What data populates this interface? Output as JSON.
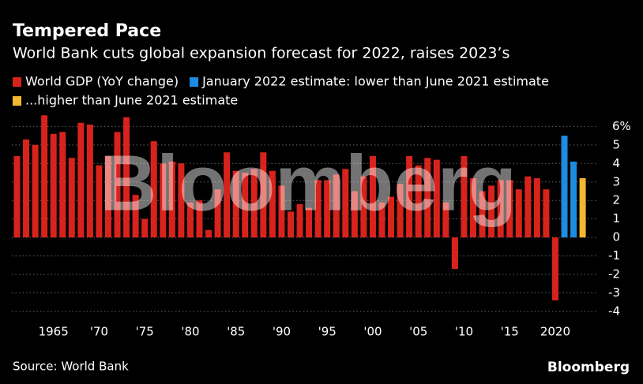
{
  "chart_data": {
    "type": "bar",
    "title": "Tempered Pace",
    "subtitle": "World Bank cuts global expansion forecast for 2022, raises 2023’s",
    "categories": [
      null,
      null,
      null,
      null,
      "1965",
      null,
      null,
      null,
      null,
      "'70",
      null,
      null,
      null,
      null,
      "'75",
      null,
      null,
      null,
      null,
      "'80",
      null,
      null,
      null,
      null,
      "'85",
      null,
      null,
      null,
      null,
      "'90",
      null,
      null,
      null,
      null,
      "'95",
      null,
      null,
      null,
      null,
      "'00",
      null,
      null,
      null,
      null,
      "'05",
      null,
      null,
      null,
      null,
      "'10",
      null,
      null,
      null,
      null,
      "'15",
      null,
      null,
      null,
      null,
      "2020",
      null,
      null,
      null
    ],
    "series": [
      {
        "name": "World GDP (YoY change)",
        "color": "#d8231c",
        "values": [
          4.4,
          5.3,
          5.0,
          6.6,
          5.6,
          5.7,
          4.3,
          6.2,
          6.1,
          3.9,
          4.4,
          5.7,
          6.5,
          2.3,
          1.0,
          5.2,
          4.0,
          4.1,
          4.0,
          1.9,
          2.0,
          0.4,
          2.6,
          4.6,
          3.6,
          3.5,
          3.7,
          4.6,
          3.6,
          2.8,
          1.4,
          1.8,
          1.6,
          3.1,
          3.1,
          3.4,
          3.7,
          2.5,
          3.3,
          4.4,
          1.9,
          2.2,
          2.9,
          4.4,
          3.9,
          4.3,
          4.2,
          1.9,
          -1.7,
          4.4,
          3.2,
          2.5,
          2.8,
          3.1,
          3.1,
          2.6,
          3.3,
          3.2,
          2.6,
          -3.4,
          null,
          null,
          null
        ]
      },
      {
        "name": "January 2022 estimate: lower than June 2021 estimate",
        "color": "#1d8be0",
        "values": [
          null,
          null,
          null,
          null,
          null,
          null,
          null,
          null,
          null,
          null,
          null,
          null,
          null,
          null,
          null,
          null,
          null,
          null,
          null,
          null,
          null,
          null,
          null,
          null,
          null,
          null,
          null,
          null,
          null,
          null,
          null,
          null,
          null,
          null,
          null,
          null,
          null,
          null,
          null,
          null,
          null,
          null,
          null,
          null,
          null,
          null,
          null,
          null,
          null,
          null,
          null,
          null,
          null,
          null,
          null,
          null,
          null,
          null,
          null,
          null,
          5.5,
          4.1,
          null
        ]
      },
      {
        "name": "...higher than June 2021 estimate",
        "color": "#f5b731",
        "values": [
          null,
          null,
          null,
          null,
          null,
          null,
          null,
          null,
          null,
          null,
          null,
          null,
          null,
          null,
          null,
          null,
          null,
          null,
          null,
          null,
          null,
          null,
          null,
          null,
          null,
          null,
          null,
          null,
          null,
          null,
          null,
          null,
          null,
          null,
          null,
          null,
          null,
          null,
          null,
          null,
          null,
          null,
          null,
          null,
          null,
          null,
          null,
          null,
          null,
          null,
          null,
          null,
          null,
          null,
          null,
          null,
          null,
          null,
          null,
          null,
          null,
          null,
          3.2
        ]
      }
    ],
    "ylim": [
      -4.3,
      6.4
    ],
    "yticks": [
      {
        "value": 6,
        "label": "6%"
      },
      5,
      4,
      3,
      2,
      1,
      0,
      -1,
      -2,
      -3,
      -4
    ],
    "grid": true,
    "watermark": "Bloomberg",
    "source": "Source: World Bank",
    "logo": "Bloomberg"
  }
}
